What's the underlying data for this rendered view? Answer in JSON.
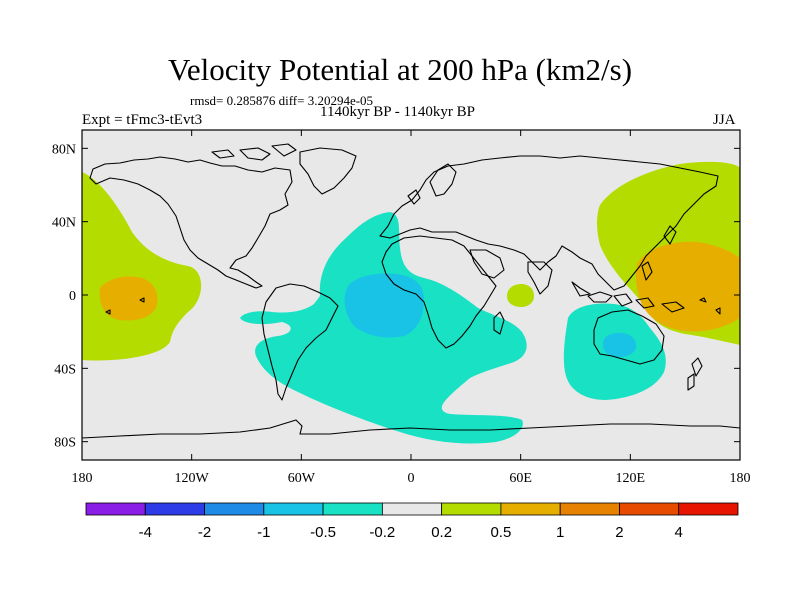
{
  "title": "Velocity Potential at 200 hPa (km2/s)",
  "stats_line": "rmsd= 0.285876 diff= 3.20294e-05",
  "period": "1140kyr BP - 1140kyr BP",
  "experiment": "Expt = tFmc3-tEvt3",
  "season": "JJA",
  "map": {
    "projection": "cylindrical equidistant",
    "lon_range": [
      -180,
      180
    ],
    "lat_range": [
      -90,
      90
    ],
    "x_ticks": [
      {
        "lon": -180,
        "label": "180"
      },
      {
        "lon": -120,
        "label": "120W"
      },
      {
        "lon": -60,
        "label": "60W"
      },
      {
        "lon": 0,
        "label": "0"
      },
      {
        "lon": 60,
        "label": "60E"
      },
      {
        "lon": 120,
        "label": "120E"
      },
      {
        "lon": 180,
        "label": "180"
      }
    ],
    "y_ticks": [
      {
        "lat": 80,
        "label": "80N"
      },
      {
        "lat": 40,
        "label": "40N"
      },
      {
        "lat": 0,
        "label": "0"
      },
      {
        "lat": -40,
        "label": "40S"
      },
      {
        "lat": -80,
        "label": "80S"
      }
    ],
    "background_color": "#e8e8e8",
    "coastline_color": "#000000"
  },
  "colorbar": {
    "colors": [
      "#8a1ee6",
      "#2d3ce6",
      "#1e8ce6",
      "#19c3e6",
      "#19e1c3",
      "#e8e8e8",
      "#b4dc00",
      "#e6af00",
      "#e68200",
      "#e64b00",
      "#e61400"
    ],
    "labels": [
      "-4",
      "-2",
      "-1",
      "-0.5",
      "-0.2",
      "0.2",
      "0.5",
      "1",
      "2",
      "4"
    ]
  }
}
